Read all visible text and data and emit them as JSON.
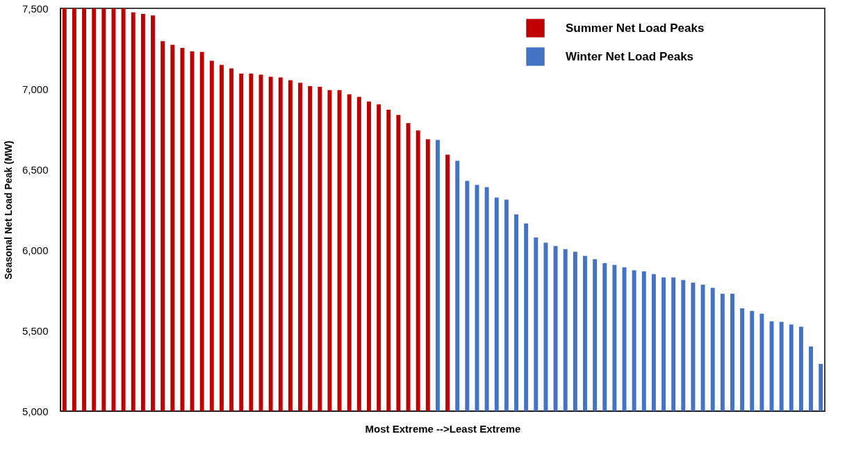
{
  "chart_data": {
    "type": "bar",
    "xlabel": "Most Extreme -->Least Extreme",
    "ylabel": "Seasonal Net Load Peak (MW)",
    "categories": [
      null,
      null,
      null,
      null,
      null,
      null,
      null,
      null,
      null,
      null,
      null,
      null,
      null,
      null,
      null,
      null,
      null,
      null,
      null,
      null,
      null,
      null,
      null,
      null,
      null,
      null,
      null,
      null,
      null,
      null,
      null,
      null,
      null,
      null,
      null,
      null,
      null,
      null,
      null,
      null,
      null,
      null,
      null,
      null,
      null,
      null,
      null,
      null,
      null,
      null,
      null,
      null,
      null,
      null,
      null,
      null,
      null,
      null,
      null,
      null,
      null,
      null,
      null,
      null,
      null,
      null,
      null,
      null,
      null,
      null,
      null,
      null,
      null,
      null,
      null,
      null,
      null,
      null
    ],
    "series": [
      {
        "name": "Summer Net Load Peaks",
        "color": "#c00000",
        "values": [
          7500,
          7500,
          7500,
          7500,
          7500,
          7500,
          7500,
          7475,
          7465,
          7456,
          7296,
          7274,
          7254,
          7233,
          7230,
          7175,
          7149,
          7127,
          7095,
          7095,
          7088,
          7075,
          7071,
          7054,
          7038,
          7017,
          7013,
          6992,
          6992,
          6967,
          6950,
          6921,
          6904,
          6871,
          6838,
          6788,
          6742,
          6688,
          null,
          6592,
          null,
          null,
          null,
          null,
          null,
          null,
          null,
          null,
          null,
          null,
          null,
          null,
          null,
          null,
          null,
          null,
          null,
          null,
          null,
          null,
          null,
          null,
          null,
          null,
          null,
          null,
          null,
          null,
          null,
          null,
          null,
          null,
          null,
          null,
          null,
          null,
          null,
          null
        ]
      },
      {
        "name": "Winter Net Load Peaks",
        "color": "#4472c4",
        "values": [
          null,
          null,
          null,
          null,
          null,
          null,
          null,
          null,
          null,
          null,
          null,
          null,
          null,
          null,
          null,
          null,
          null,
          null,
          null,
          null,
          null,
          null,
          null,
          null,
          null,
          null,
          null,
          null,
          null,
          null,
          null,
          null,
          null,
          null,
          null,
          null,
          null,
          null,
          6683,
          null,
          6554,
          6429,
          6404,
          6390,
          6325,
          6313,
          6221,
          6165,
          6078,
          6045,
          6025,
          6005,
          5989,
          5963,
          5943,
          5918,
          5907,
          5892,
          5874,
          5867,
          5850,
          5830,
          5830,
          5814,
          5797,
          5785,
          5765,
          5728,
          5728,
          5638,
          5622,
          5605,
          5557,
          5554,
          5538,
          5524,
          5401,
          5293
        ]
      }
    ],
    "ylim": [
      5000,
      7500
    ],
    "yticks": [
      {
        "value": 5000,
        "label": "5,000"
      },
      {
        "value": 5500,
        "label": "5,500"
      },
      {
        "value": 6000,
        "label": "6,000"
      },
      {
        "value": 6500,
        "label": "6,500"
      },
      {
        "value": 7000,
        "label": "7,000"
      },
      {
        "value": 7500,
        "label": "7,500"
      }
    ],
    "grid": false,
    "legend": "top right",
    "tick_labels": "y"
  }
}
